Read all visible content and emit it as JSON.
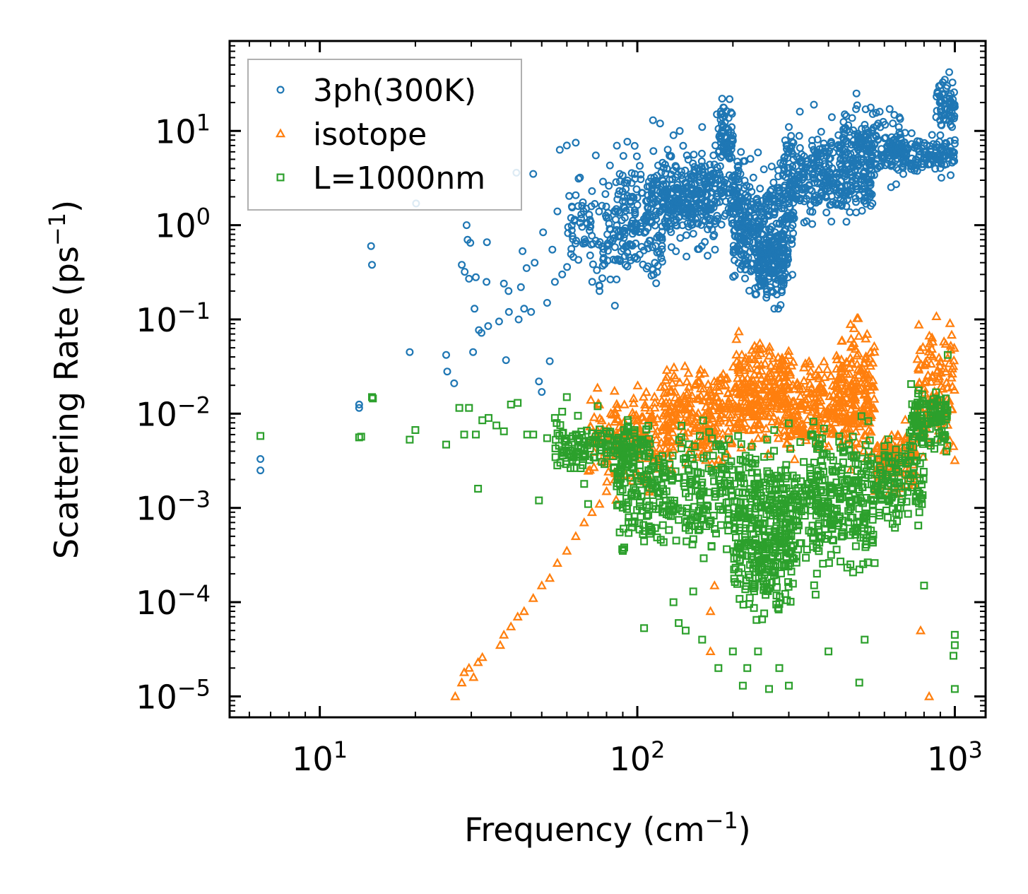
{
  "chart_data": {
    "type": "scatter",
    "title": "",
    "xlabel": {
      "main": "Frequency (cm",
      "sup": "−1",
      "tail": ")"
    },
    "ylabel": {
      "main": "Scattering Rate (ps",
      "sup": "−1",
      "tail": ")"
    },
    "xscale": "log",
    "yscale": "log",
    "xlim": [
      5.2,
      1250
    ],
    "ylim": [
      6e-06,
      90
    ],
    "x_ticks": [
      {
        "value": 10,
        "base": "10",
        "exp": "1"
      },
      {
        "value": 100,
        "base": "10",
        "exp": "2"
      },
      {
        "value": 1000,
        "base": "10",
        "exp": "3"
      }
    ],
    "y_ticks": [
      {
        "value": 1e-05,
        "base": "10",
        "exp": "−5"
      },
      {
        "value": 0.0001,
        "base": "10",
        "exp": "−4"
      },
      {
        "value": 0.001,
        "base": "10",
        "exp": "−3"
      },
      {
        "value": 0.01,
        "base": "10",
        "exp": "−2"
      },
      {
        "value": 0.1,
        "base": "10",
        "exp": "−1"
      },
      {
        "value": 1,
        "base": "10",
        "exp": "0"
      },
      {
        "value": 10,
        "base": "10",
        "exp": "1"
      }
    ],
    "grid": false,
    "legend_position": "top-left",
    "series": [
      {
        "name": "3ph(300K)",
        "marker": "circle",
        "color": "#1f77b4",
        "points": [
          [
            6.5,
            0.0033
          ],
          [
            6.5,
            0.0025
          ],
          [
            13.3,
            0.0125
          ],
          [
            13.3,
            0.0115
          ],
          [
            14.5,
            0.6
          ],
          [
            14.6,
            0.38
          ],
          [
            19.2,
            0.045
          ],
          [
            20.1,
            1.7
          ],
          [
            25,
            0.042
          ],
          [
            25.2,
            0.028
          ],
          [
            26.5,
            0.021
          ],
          [
            28,
            0.38
          ],
          [
            28.6,
            0.32
          ],
          [
            29,
            1.0
          ],
          [
            29.2,
            0.7
          ],
          [
            29.5,
            0.27
          ],
          [
            29.8,
            0.65
          ],
          [
            30.4,
            0.045
          ],
          [
            30.7,
            0.13
          ],
          [
            31,
            0.28
          ],
          [
            31.7,
            0.077
          ],
          [
            32.3,
            0.072
          ],
          [
            33.5,
            0.25
          ],
          [
            33.6,
            0.66
          ],
          [
            33.9,
            0.085
          ],
          [
            36.7,
            0.095
          ],
          [
            38,
            0.24
          ],
          [
            38.6,
            0.037
          ],
          [
            39.3,
            0.2
          ],
          [
            39.4,
            0.12
          ],
          [
            41.6,
            3.6
          ],
          [
            42.3,
            0.1
          ],
          [
            43,
            0.22
          ],
          [
            43.5,
            0.53
          ],
          [
            44,
            0.13
          ],
          [
            44.8,
            0.35
          ],
          [
            46.3,
            0.12
          ],
          [
            47,
            3.5
          ],
          [
            47.5,
            0.4
          ],
          [
            49,
            0.022
          ],
          [
            50,
            0.017
          ],
          [
            50.5,
            0.84
          ],
          [
            52,
            0.15
          ],
          [
            53,
            0.036
          ],
          [
            54,
            0.55
          ],
          [
            55,
            0.25
          ],
          [
            56,
            1.4
          ],
          [
            57,
            6.3
          ],
          [
            58,
            0.3
          ],
          [
            60,
            7.0
          ],
          [
            62,
            0.56
          ],
          [
            64,
            7.5
          ],
          [
            66,
            3.2
          ],
          [
            67,
            1.6
          ],
          [
            69,
            1.5
          ],
          [
            72,
            2.3
          ],
          [
            74,
            5.5
          ],
          [
            76,
            0.2
          ],
          [
            78,
            2.9
          ],
          [
            80,
            1.2
          ],
          [
            82,
            4.3
          ],
          [
            85,
            0.14
          ],
          [
            88,
            3.5
          ],
          [
            92,
            0.6
          ],
          [
            96,
            2.8
          ],
          [
            102,
            0.85
          ],
          [
            108,
            1.5
          ],
          [
            112,
            13
          ],
          [
            118,
            12
          ],
          [
            125,
            1.1
          ],
          [
            130,
            9.0
          ],
          [
            136,
            10
          ],
          [
            142,
            2.2
          ],
          [
            148,
            1.0
          ],
          [
            155,
            4.0
          ],
          [
            160,
            11
          ],
          [
            165,
            2.5
          ],
          [
            172,
            0.9
          ],
          [
            178,
            15
          ],
          [
            185,
            22
          ],
          [
            190,
            7.0
          ],
          [
            200,
            2.2
          ],
          [
            210,
            0.7
          ],
          [
            218,
            4.8
          ],
          [
            225,
            1.0
          ],
          [
            232,
            3.2
          ],
          [
            240,
            0.7
          ],
          [
            250,
            0.35
          ],
          [
            255,
            0.17
          ],
          [
            262,
            0.22
          ],
          [
            270,
            0.13
          ],
          [
            278,
            0.13
          ],
          [
            285,
            0.35
          ],
          [
            290,
            4.8
          ],
          [
            300,
            11
          ],
          [
            310,
            5.0
          ],
          [
            325,
            16
          ],
          [
            340,
            4.8
          ],
          [
            360,
            19
          ],
          [
            375,
            4.6
          ],
          [
            390,
            2.4
          ],
          [
            410,
            14
          ],
          [
            430,
            7.0
          ],
          [
            450,
            15
          ],
          [
            470,
            4.0
          ],
          [
            490,
            25
          ],
          [
            520,
            8.0
          ],
          [
            550,
            1.7
          ],
          [
            580,
            16
          ],
          [
            620,
            6.0
          ],
          [
            660,
            6.0
          ],
          [
            700,
            7.0
          ],
          [
            750,
            7.0
          ],
          [
            800,
            6.0
          ],
          [
            850,
            5.5
          ],
          [
            900,
            9.0
          ],
          [
            930,
            35
          ],
          [
            960,
            42
          ],
          [
            980,
            11
          ],
          [
            1000,
            18
          ],
          [
            1000,
            8.0
          ]
        ],
        "clusters": [
          {
            "x": [
              60,
              120
            ],
            "y": [
              0.15,
              4.0
            ],
            "n": 170
          },
          {
            "x": [
              85,
              180
            ],
            "y": [
              0.3,
              10
            ],
            "n": 220
          },
          {
            "x": [
              110,
              210
            ],
            "y": [
              0.6,
              8
            ],
            "n": 240
          },
          {
            "x": [
              180,
              200
            ],
            "y": [
              3,
              24
            ],
            "n": 70
          },
          {
            "x": [
              200,
              310
            ],
            "y": [
              0.12,
              8
            ],
            "n": 360
          },
          {
            "x": [
              240,
              290
            ],
            "y": [
              0.12,
              1.0
            ],
            "n": 110
          },
          {
            "x": [
              290,
              550
            ],
            "y": [
              0.8,
              15
            ],
            "n": 360
          },
          {
            "x": [
              440,
              700
            ],
            "y": [
              2,
              25
            ],
            "n": 140
          },
          {
            "x": [
              600,
              1000
            ],
            "y": [
              3,
              10
            ],
            "n": 150
          },
          {
            "x": [
              860,
              1000
            ],
            "y": [
              8,
              45
            ],
            "n": 60
          }
        ]
      },
      {
        "name": "isotope",
        "marker": "triangle",
        "color": "#ff7f0e",
        "points": [
          [
            26.7,
            1e-05
          ],
          [
            28,
            1.4e-05
          ],
          [
            28.5,
            1.8e-05
          ],
          [
            29.5,
            2e-05
          ],
          [
            30.5,
            1.6e-05
          ],
          [
            31.5,
            2.3e-05
          ],
          [
            32.5,
            2.6e-05
          ],
          [
            37,
            3.5e-05
          ],
          [
            38,
            4.5e-05
          ],
          [
            40,
            5.5e-05
          ],
          [
            42,
            7e-05
          ],
          [
            44,
            8e-05
          ],
          [
            47,
            0.00011
          ],
          [
            50,
            0.00015
          ],
          [
            53,
            0.00018
          ],
          [
            56,
            0.00026
          ],
          [
            60,
            0.00035
          ],
          [
            64,
            0.0005
          ],
          [
            68,
            0.0007
          ],
          [
            72,
            0.0009
          ],
          [
            76,
            0.0011
          ],
          [
            80,
            0.0015
          ],
          [
            85,
            0.002
          ],
          [
            90,
            0.0035
          ],
          [
            170,
            8e-05
          ],
          [
            175,
            0.00015
          ],
          [
            780,
            5e-05
          ],
          [
            830,
            1e-05
          ],
          [
            1000,
            0.0032
          ],
          [
            990,
            0.0045
          ],
          [
            170,
            3e-05
          ]
        ],
        "clusters": [
          {
            "x": [
              70,
              130
            ],
            "y": [
              0.001,
              0.03
            ],
            "n": 180
          },
          {
            "x": [
              120,
              200
            ],
            "y": [
              0.002,
              0.05
            ],
            "n": 220
          },
          {
            "x": [
              200,
              300
            ],
            "y": [
              0.003,
              0.09
            ],
            "n": 260
          },
          {
            "x": [
              300,
              420
            ],
            "y": [
              0.002,
              0.06
            ],
            "n": 160
          },
          {
            "x": [
              420,
              560
            ],
            "y": [
              0.0015,
              0.18
            ],
            "n": 200
          },
          {
            "x": [
              560,
              760
            ],
            "y": [
              0.001,
              0.01
            ],
            "n": 120
          },
          {
            "x": [
              760,
              1000
            ],
            "y": [
              0.002,
              0.15
            ],
            "n": 120
          }
        ]
      },
      {
        "name": "L=1000nm",
        "marker": "square",
        "color": "#2ca02c",
        "points": [
          [
            6.5,
            0.0058
          ],
          [
            13.3,
            0.0056
          ],
          [
            13.5,
            0.0057
          ],
          [
            14.6,
            0.015
          ],
          [
            14.7,
            0.0145
          ],
          [
            19.2,
            0.0053
          ],
          [
            20,
            0.0067
          ],
          [
            25,
            0.0047
          ],
          [
            27.5,
            0.0115
          ],
          [
            28.5,
            0.006
          ],
          [
            29.5,
            0.0115
          ],
          [
            31,
            0.006
          ],
          [
            31.5,
            0.0016
          ],
          [
            32.5,
            0.0085
          ],
          [
            34,
            0.009
          ],
          [
            36,
            0.0075
          ],
          [
            38,
            0.0065
          ],
          [
            40,
            0.0125
          ],
          [
            42,
            0.013
          ],
          [
            45,
            0.006
          ],
          [
            47,
            0.006
          ],
          [
            49,
            0.0012
          ],
          [
            52,
            0.0055
          ],
          [
            55,
            0.009
          ],
          [
            58,
            0.0105
          ],
          [
            60,
            0.015
          ],
          [
            62,
            0.0035
          ],
          [
            65,
            0.0095
          ],
          [
            68,
            0.0018
          ],
          [
            70,
            0.0011
          ],
          [
            75,
            0.012
          ],
          [
            80,
            0.0065
          ],
          [
            88,
            0.00055
          ],
          [
            90,
            0.00035
          ],
          [
            105,
            5.3e-05
          ],
          [
            130,
            0.0001
          ],
          [
            135,
            6e-05
          ],
          [
            142,
            5e-05
          ],
          [
            150,
            0.00013
          ],
          [
            160,
            4e-05
          ],
          [
            180,
            2e-05
          ],
          [
            200,
            3e-05
          ],
          [
            215,
            1.3e-05
          ],
          [
            222,
            2e-05
          ],
          [
            240,
            3e-05
          ],
          [
            260,
            1.2e-05
          ],
          [
            280,
            2e-05
          ],
          [
            300,
            1.3e-05
          ],
          [
            400,
            3e-05
          ],
          [
            500,
            1.4e-05
          ],
          [
            520,
            4e-05
          ],
          [
            800,
            0.00015
          ],
          [
            1000,
            1.2e-05
          ],
          [
            1000,
            3.5e-05
          ],
          [
            1000,
            4.5e-05
          ],
          [
            990,
            2.7e-05
          ],
          [
            950,
            0.042
          ]
        ],
        "clusters": [
          {
            "x": [
              55,
              110
            ],
            "y": [
              0.002,
              0.01
            ],
            "n": 160
          },
          {
            "x": [
              85,
              200
            ],
            "y": [
              0.0002,
              0.012
            ],
            "n": 300
          },
          {
            "x": [
              200,
              310
            ],
            "y": [
              4e-05,
              0.012
            ],
            "n": 380
          },
          {
            "x": [
              310,
              560
            ],
            "y": [
              0.0001,
              0.015
            ],
            "n": 320
          },
          {
            "x": [
              560,
              800
            ],
            "y": [
              0.0004,
              0.01
            ],
            "n": 120
          },
          {
            "x": [
              720,
              950
            ],
            "y": [
              0.003,
              0.025
            ],
            "n": 120
          }
        ]
      }
    ]
  }
}
